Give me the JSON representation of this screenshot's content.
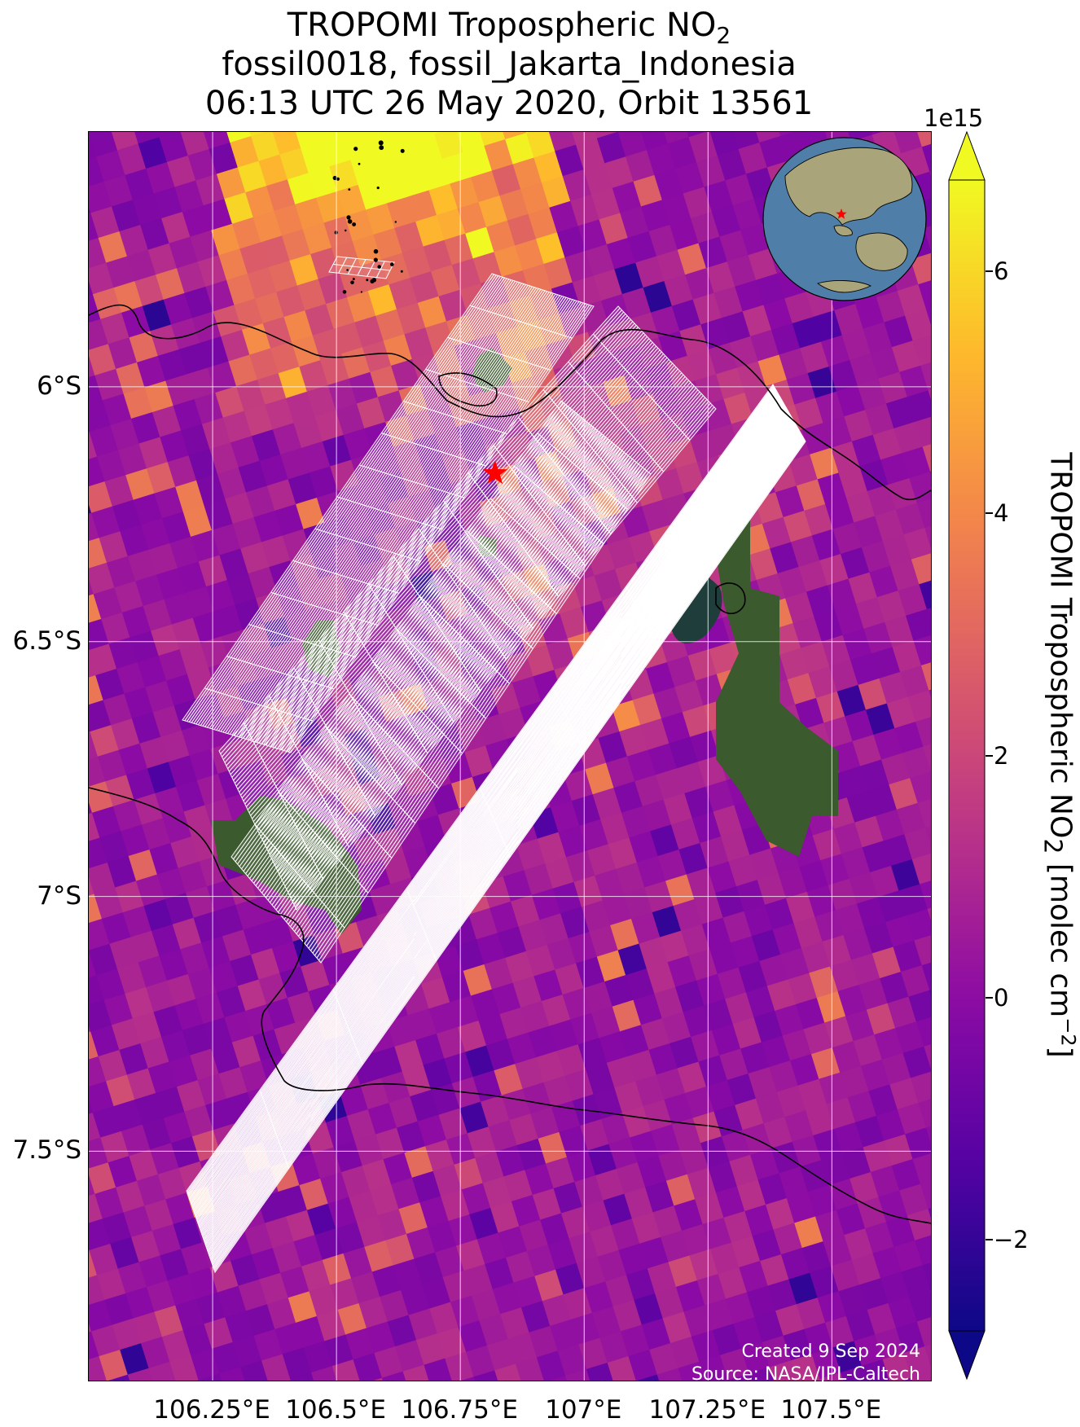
{
  "title": {
    "line1_prefix": "TROPOMI Tropospheric NO",
    "line1_sub": "2",
    "line2": "fossil0018, fossil_Jakarta_Indonesia",
    "line3": "06:13 UTC 26 May 2020, Orbit 13561"
  },
  "map": {
    "extent": {
      "lon_min": 106.0,
      "lon_max": 107.7,
      "lat_min": -7.95,
      "lat_max": -5.5
    },
    "lat_ticks": [
      {
        "value": -6.0,
        "label": "6°S"
      },
      {
        "value": -6.5,
        "label": "6.5°S"
      },
      {
        "value": -7.0,
        "label": "7°S"
      },
      {
        "value": -7.5,
        "label": "7.5°S"
      }
    ],
    "lon_ticks": [
      {
        "value": 106.25,
        "label": "106.25°E"
      },
      {
        "value": 106.5,
        "label": "106.5°E"
      },
      {
        "value": 106.75,
        "label": "106.75°E"
      },
      {
        "value": 107.0,
        "label": "107°E"
      },
      {
        "value": 107.25,
        "label": "107.25°E"
      },
      {
        "value": 107.5,
        "label": "107.5°E"
      }
    ],
    "target": {
      "name": "fossil_Jakarta_Indonesia",
      "lon": 106.82,
      "lat": -6.17,
      "marker": "red-star"
    },
    "colormap": "plasma",
    "gridline_color": "#ffffff",
    "footprint_outline_color": "#ffffff",
    "coastline_color": "#000000",
    "inset_globe": true
  },
  "colorbar": {
    "exponent": "1e15",
    "label_prefix": "TROPOMI Tropospheric NO",
    "label_sub": "2",
    "label_unit_prefix": " [molec cm",
    "label_unit_sup": "−2",
    "label_suffix": "]",
    "vmin": -2.75,
    "vmax": 6.75,
    "extend": "both",
    "ticks": [
      {
        "value": -2,
        "label": "−2"
      },
      {
        "value": 0,
        "label": "0"
      },
      {
        "value": 2,
        "label": "2"
      },
      {
        "value": 4,
        "label": "4"
      },
      {
        "value": 6,
        "label": "6"
      }
    ]
  },
  "credit": {
    "line1": "Created 9 Sep 2024",
    "line2": "Source: NASA/JPL-Caltech"
  }
}
